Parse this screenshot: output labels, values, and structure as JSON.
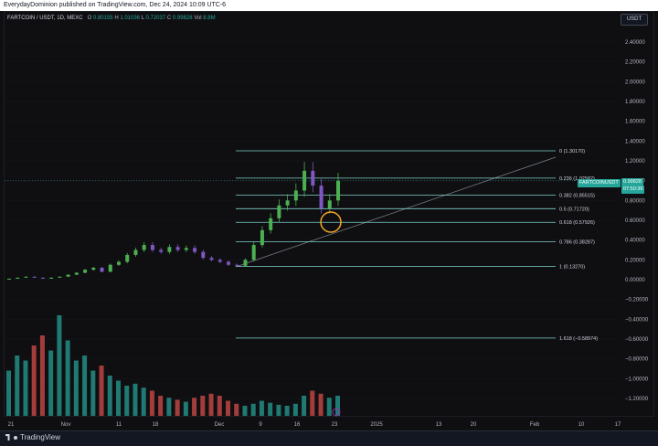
{
  "header": {
    "publish_text": "EverydayDominion published on TradingView.com, Dec 24, 2024 10:09 UTC-6"
  },
  "legend": {
    "symbol": "FARTCOIN / USDT, 1D, MEXC",
    "open_label": "O",
    "open_value": "0.80155",
    "high_label": "H",
    "high_value": "1.01036",
    "low_label": "L",
    "low_value": "0.72037",
    "close_label": "C",
    "close_value": "0.99828",
    "vol_label": "Vol",
    "vol_value": "8.8M"
  },
  "currency_button": "USDT",
  "price_axis": {
    "ticks": [
      "2.40000",
      "2.20000",
      "2.00000",
      "1.80000",
      "1.60000",
      "1.40000",
      "1.20000",
      "1.00000",
      "0.80000",
      "0.60000",
      "0.40000",
      "0.20000",
      "0.00000",
      "−0.20000",
      "−0.40000",
      "−0.60000",
      "−0.80000",
      "−1.00000",
      "−1.20000"
    ],
    "tick_values": [
      2.4,
      2.2,
      2.0,
      1.8,
      1.6,
      1.4,
      1.2,
      1.0,
      0.8,
      0.6,
      0.4,
      0.2,
      0.0,
      -0.2,
      -0.4,
      -0.6,
      -0.8,
      -1.0,
      -1.2
    ],
    "current_symbol_tag": "FARTCOINUSDT",
    "current_price_tag": "0.99828",
    "countdown_tag": "07:50:36"
  },
  "time_axis": {
    "labels": [
      "21",
      "Nov",
      "11",
      "18",
      "Dec",
      "9",
      "16",
      "23",
      "2025",
      "13",
      "20",
      "Feb",
      "10",
      "17"
    ]
  },
  "fibonacci": {
    "levels": [
      {
        "label": "0 (1.30170)",
        "value": 1.3017
      },
      {
        "label": "0.236 (1.02582)",
        "value": 1.02582
      },
      {
        "label": "0.382 (0.85515)",
        "value": 0.85515
      },
      {
        "label": "0.5 (0.71720)",
        "value": 0.7172
      },
      {
        "label": "0.618 (0.57926)",
        "value": 0.57926
      },
      {
        "label": "0.786 (0.38287)",
        "value": 0.38287
      },
      {
        "label": "1 (0.13270)",
        "value": 0.1327
      },
      {
        "label": "1.618 (−0.58974)",
        "value": -0.58974
      }
    ],
    "color": "#7fd1c8"
  },
  "colors": {
    "up": "#26a69a",
    "down": "#ef5350",
    "up_candle": "#4caf50",
    "down_candle": "#7e57c2",
    "highlight_circle": "#f5a623",
    "bolt_icon": "#9c27b0"
  },
  "footer": {
    "brand": "TradingView"
  },
  "chart_data": {
    "type": "candlestick",
    "series_close": [
      0.01,
      0.02,
      0.03,
      0.02,
      0.01,
      0.02,
      0.03,
      0.05,
      0.07,
      0.1,
      0.12,
      0.08,
      0.15,
      0.18,
      0.25,
      0.3,
      0.35,
      0.3,
      0.28,
      0.33,
      0.3,
      0.32,
      0.28,
      0.22,
      0.2,
      0.18,
      0.15,
      0.14,
      0.2,
      0.35,
      0.5,
      0.62,
      0.75,
      0.8,
      0.9,
      1.1,
      0.95,
      0.72,
      0.8,
      1.0
    ],
    "volume_relative": [
      0.45,
      0.6,
      0.55,
      0.7,
      0.8,
      0.65,
      1.0,
      0.75,
      0.55,
      0.6,
      0.45,
      0.5,
      0.4,
      0.35,
      0.3,
      0.32,
      0.28,
      0.25,
      0.2,
      0.18,
      0.16,
      0.14,
      0.18,
      0.2,
      0.22,
      0.2,
      0.15,
      0.12,
      0.1,
      0.12,
      0.15,
      0.13,
      0.11,
      0.1,
      0.12,
      0.2,
      0.25,
      0.22,
      0.18,
      0.2
    ],
    "ylim": [
      -1.3,
      2.5
    ]
  }
}
